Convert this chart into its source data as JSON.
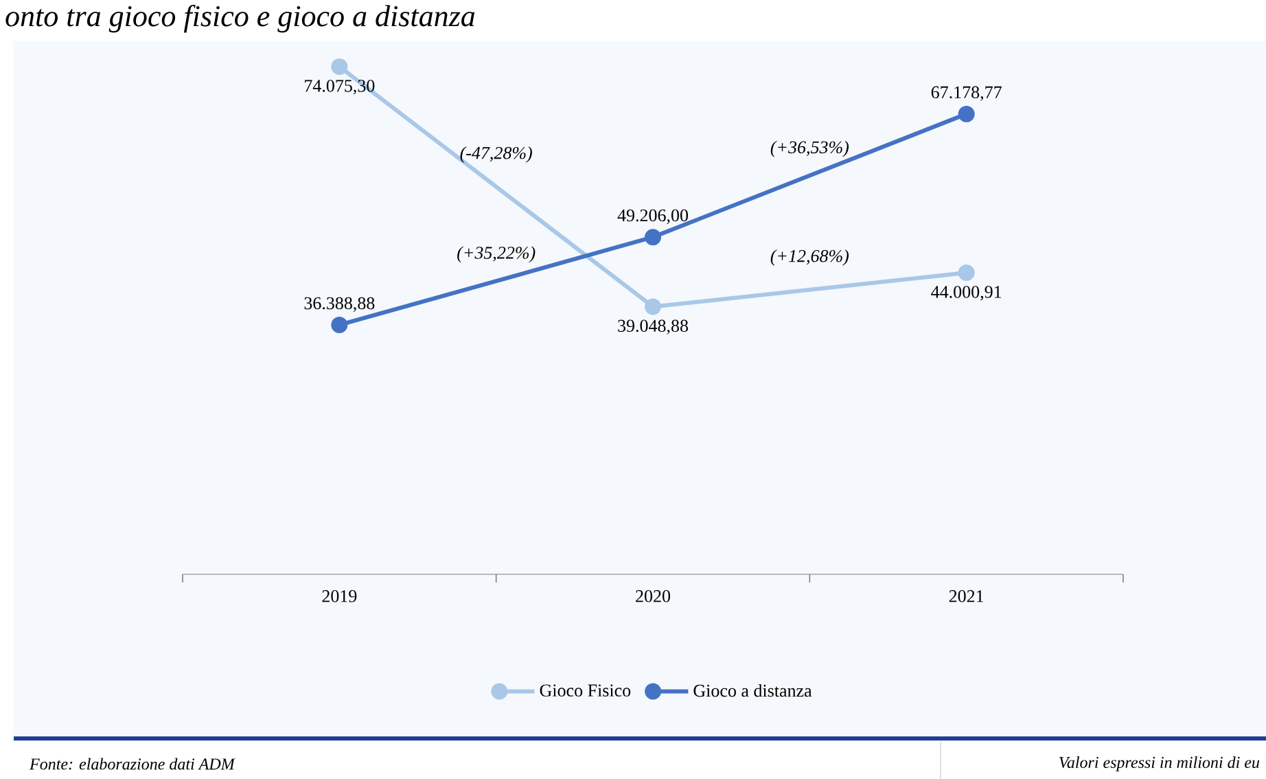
{
  "chart_data": {
    "type": "line",
    "title": "onto tra gioco fisico e gioco a distanza",
    "categories": [
      "2019",
      "2020",
      "2021"
    ],
    "series": [
      {
        "name": "Gioco Fisico",
        "color": "#a9c8e8",
        "values": [
          74075.3,
          39048.88,
          44000.91
        ],
        "value_labels": [
          "74.075,30",
          "39.048,88",
          "44.000,91"
        ]
      },
      {
        "name": "Gioco a distanza",
        "color": "#4472c4",
        "values": [
          36388.88,
          49206.0,
          67178.77
        ],
        "value_labels": [
          "36.388,88",
          "49.206,00",
          "67.178,77"
        ]
      }
    ],
    "marker": "circle",
    "line_style": "solid",
    "grid": false,
    "legend": "bottom",
    "tick_labels": "x",
    "annotations": [
      "(-47,28%)",
      "(+12,68%)",
      "(+35,22%)",
      "(+36,53%)",
      "Fonte: elaborazione dati ADM",
      "Valori espressi in milioni di eu"
    ]
  }
}
